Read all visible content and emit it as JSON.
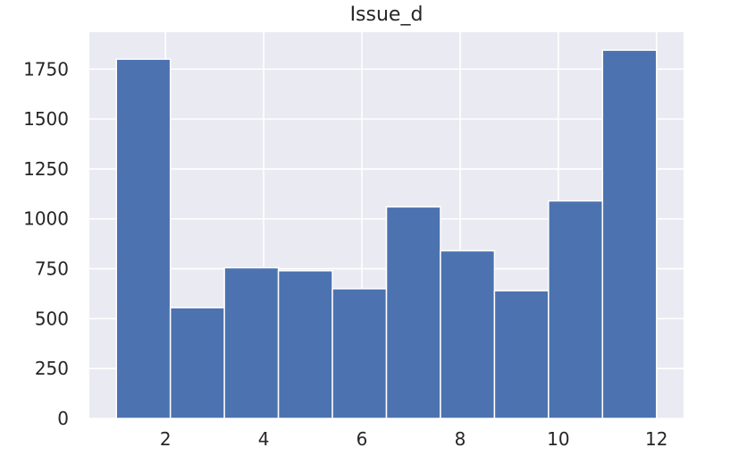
{
  "chart_data": {
    "type": "histogram",
    "title": "Issue_d",
    "xlabel": "",
    "ylabel": "",
    "xlim": [
      0.45,
      12.55
    ],
    "ylim": [
      0,
      1935
    ],
    "xticks": [
      2,
      4,
      6,
      8,
      10,
      12
    ],
    "yticks": [
      0,
      250,
      500,
      750,
      1000,
      1250,
      1500,
      1750
    ],
    "bins": [
      {
        "x0": 1.0,
        "x1": 2.1,
        "count": 1800
      },
      {
        "x0": 2.1,
        "x1": 3.2,
        "count": 555
      },
      {
        "x0": 3.2,
        "x1": 4.3,
        "count": 755
      },
      {
        "x0": 4.3,
        "x1": 5.4,
        "count": 740
      },
      {
        "x0": 5.4,
        "x1": 6.5,
        "count": 650
      },
      {
        "x0": 6.5,
        "x1": 7.6,
        "count": 1060
      },
      {
        "x0": 7.6,
        "x1": 8.7,
        "count": 840
      },
      {
        "x0": 8.7,
        "x1": 9.8,
        "count": 640
      },
      {
        "x0": 9.8,
        "x1": 10.9,
        "count": 1090
      },
      {
        "x0": 10.9,
        "x1": 12.0,
        "count": 1845
      }
    ],
    "grid": true,
    "colors": {
      "bar": "#4c72b0",
      "bar_edge": "#ffffff",
      "background": "#eaeaf2",
      "grid": "#ffffff"
    }
  }
}
